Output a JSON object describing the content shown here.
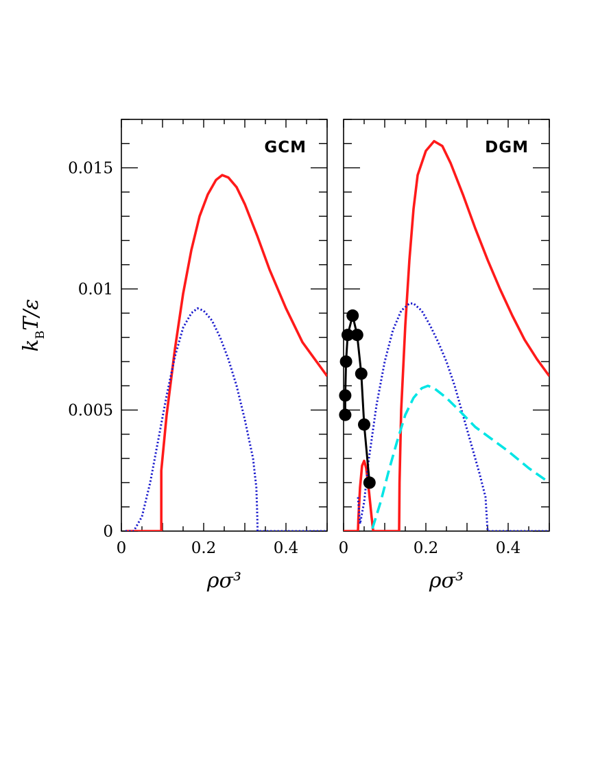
{
  "chart_data": [
    {
      "type": "line",
      "panel_label": "GCM",
      "xlabel": "ρσ³",
      "ylabel": "k_B T/ε",
      "ylabel_main": "k",
      "ylabel_sub": "B",
      "ylabel_rest": "T/ε",
      "xlim": [
        0,
        0.5
      ],
      "ylim": [
        0,
        0.017
      ],
      "x_ticks": [
        0,
        0.2,
        0.4
      ],
      "x_tick_labels": [
        "0",
        "0.2",
        "0.4"
      ],
      "y_ticks": [
        0,
        0.005,
        0.01,
        0.015
      ],
      "y_tick_labels": [
        "0",
        "0.005",
        "0.01",
        "0.015"
      ],
      "grid": false,
      "series": [
        {
          "color": "#ff1a1a",
          "style": "solid",
          "points": [
            [
              0.01,
              0
            ],
            [
              0.05,
              0
            ],
            [
              0.097,
              0
            ],
            [
              0.097,
              0.0025
            ],
            [
              0.11,
              0.0048
            ],
            [
              0.13,
              0.0075
            ],
            [
              0.15,
              0.0098
            ],
            [
              0.17,
              0.0116
            ],
            [
              0.19,
              0.013
            ],
            [
              0.21,
              0.0139
            ],
            [
              0.23,
              0.0145
            ],
            [
              0.245,
              0.0147
            ],
            [
              0.26,
              0.0146
            ],
            [
              0.28,
              0.0142
            ],
            [
              0.3,
              0.0135
            ],
            [
              0.33,
              0.0122
            ],
            [
              0.36,
              0.0108
            ],
            [
              0.4,
              0.0092
            ],
            [
              0.44,
              0.0078
            ],
            [
              0.47,
              0.0071
            ],
            [
              0.5,
              0.0064
            ]
          ]
        },
        {
          "color": "#1a1acc",
          "style": "dotted",
          "points": [
            [
              0.01,
              0
            ],
            [
              0.03,
              0
            ],
            [
              0.05,
              0.0006
            ],
            [
              0.07,
              0.002
            ],
            [
              0.09,
              0.0038
            ],
            [
              0.11,
              0.0056
            ],
            [
              0.13,
              0.0072
            ],
            [
              0.15,
              0.0084
            ],
            [
              0.17,
              0.009
            ],
            [
              0.185,
              0.0092
            ],
            [
              0.2,
              0.0091
            ],
            [
              0.22,
              0.0087
            ],
            [
              0.24,
              0.008
            ],
            [
              0.26,
              0.0071
            ],
            [
              0.28,
              0.006
            ],
            [
              0.3,
              0.0046
            ],
            [
              0.32,
              0.003
            ],
            [
              0.328,
              0.0018
            ],
            [
              0.33,
              0.0008
            ],
            [
              0.331,
              0
            ],
            [
              0.4,
              0
            ],
            [
              0.5,
              0
            ]
          ]
        }
      ]
    },
    {
      "type": "line",
      "panel_label": "DGM",
      "xlabel": "ρσ³",
      "xlim": [
        0,
        0.5
      ],
      "ylim": [
        0,
        0.017
      ],
      "x_ticks": [
        0,
        0.2,
        0.4
      ],
      "x_tick_labels": [
        "0",
        "0.2",
        "0.4"
      ],
      "grid": false,
      "series": [
        {
          "color": "#ff1a1a",
          "style": "solid",
          "points": [
            [
              0.0,
              0
            ],
            [
              0.035,
              0
            ],
            [
              0.036,
              0.0005
            ],
            [
              0.04,
              0.0018
            ],
            [
              0.045,
              0.0027
            ],
            [
              0.05,
              0.0029
            ],
            [
              0.055,
              0.0026
            ],
            [
              0.062,
              0.0016
            ],
            [
              0.068,
              0.0006
            ],
            [
              0.072,
              0
            ],
            [
              0.1,
              0
            ],
            [
              0.135,
              0
            ],
            [
              0.136,
              0.002
            ],
            [
              0.14,
              0.005
            ],
            [
              0.15,
              0.0085
            ],
            [
              0.16,
              0.0112
            ],
            [
              0.17,
              0.0133
            ],
            [
              0.18,
              0.0147
            ],
            [
              0.2,
              0.0157
            ],
            [
              0.22,
              0.0161
            ],
            [
              0.24,
              0.0159
            ],
            [
              0.26,
              0.0152
            ],
            [
              0.29,
              0.0139
            ],
            [
              0.32,
              0.0125
            ],
            [
              0.35,
              0.0112
            ],
            [
              0.38,
              0.01
            ],
            [
              0.41,
              0.0089
            ],
            [
              0.44,
              0.0079
            ],
            [
              0.47,
              0.0071
            ],
            [
              0.5,
              0.0064
            ]
          ]
        },
        {
          "color": "#1a1acc",
          "style": "dotted",
          "points": [
            [
              0.035,
              0.0014
            ],
            [
              0.04,
              0.0003
            ],
            [
              0.05,
              0.0012
            ],
            [
              0.06,
              0.0028
            ],
            [
              0.08,
              0.0052
            ],
            [
              0.1,
              0.007
            ],
            [
              0.12,
              0.0083
            ],
            [
              0.14,
              0.0091
            ],
            [
              0.16,
              0.0094
            ],
            [
              0.17,
              0.0094
            ],
            [
              0.19,
              0.0091
            ],
            [
              0.21,
              0.0085
            ],
            [
              0.23,
              0.0078
            ],
            [
              0.25,
              0.007
            ],
            [
              0.27,
              0.006
            ],
            [
              0.29,
              0.0048
            ],
            [
              0.31,
              0.0036
            ],
            [
              0.33,
              0.0024
            ],
            [
              0.345,
              0.0014
            ],
            [
              0.35,
              0
            ],
            [
              0.4,
              0
            ],
            [
              0.5,
              0
            ]
          ]
        },
        {
          "color": "#00e5e5",
          "style": "dashed",
          "points": [
            [
              0.07,
              0.0001
            ],
            [
              0.09,
              0.0012
            ],
            [
              0.11,
              0.0025
            ],
            [
              0.13,
              0.0037
            ],
            [
              0.15,
              0.0048
            ],
            [
              0.17,
              0.0055
            ],
            [
              0.19,
              0.0059
            ],
            [
              0.205,
              0.006
            ],
            [
              0.22,
              0.0059
            ],
            [
              0.25,
              0.0055
            ],
            [
              0.28,
              0.005
            ],
            [
              0.32,
              0.0043
            ],
            [
              0.36,
              0.0038
            ],
            [
              0.4,
              0.0033
            ],
            [
              0.45,
              0.0026
            ],
            [
              0.5,
              0.002
            ]
          ]
        },
        {
          "color": "#000000",
          "style": "solid-markers",
          "points": [
            [
              0.004,
              0.0048
            ],
            [
              0.004,
              0.0056
            ],
            [
              0.006,
              0.007
            ],
            [
              0.01,
              0.0081
            ],
            [
              0.022,
              0.0089
            ],
            [
              0.033,
              0.0081
            ],
            [
              0.043,
              0.0065
            ],
            [
              0.05,
              0.0044
            ],
            [
              0.063,
              0.002
            ]
          ]
        }
      ]
    }
  ]
}
